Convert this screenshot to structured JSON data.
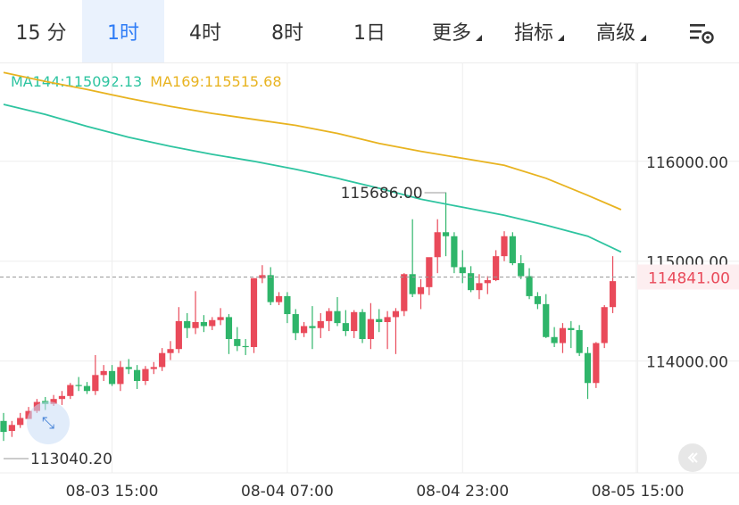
{
  "tabs": [
    {
      "label": "15 分"
    },
    {
      "label": "1时"
    },
    {
      "label": "4时"
    },
    {
      "label": "8时"
    },
    {
      "label": "1日"
    },
    {
      "label": "更多"
    },
    {
      "label": "指标"
    },
    {
      "label": "高级"
    }
  ],
  "active_tab": 1,
  "ma": {
    "ma144_label": "MA144:115092.13",
    "ma169_label": "MA169:115515.68",
    "ma144_color": "#2ec4a0",
    "ma169_color": "#e8b320"
  },
  "colors": {
    "up": "#e94a5a",
    "down": "#2fb56a",
    "grid": "#eeeeee",
    "axis_text": "#333333",
    "current_price_color": "#e94a5a"
  },
  "icons": {
    "settings": "settings-sliders-icon",
    "collapse": "chevron-left-icon",
    "expand": "expand-arrows-icon"
  },
  "chart_data": {
    "type": "candlestick",
    "x_ticks": [
      "08-03 15:00",
      "08-04 07:00",
      "08-04 23:00",
      "08-05 15:00"
    ],
    "y_ticks": [
      "116000.00",
      "115000.00",
      "114000.00"
    ],
    "ylim": [
      112880,
      116990
    ],
    "current_price": 114841.0,
    "current_price_label": "114841.00",
    "high_label": "115686.00",
    "high_value": 115686.0,
    "low_label": "113040.20",
    "low_value": 113040.2,
    "candles": [
      [
        113400,
        113480,
        113200,
        113290
      ],
      [
        113300,
        113400,
        113240,
        113360
      ],
      [
        113360,
        113480,
        113330,
        113430
      ],
      [
        113420,
        113540,
        113420,
        113500
      ],
      [
        113500,
        113620,
        113480,
        113590
      ],
      [
        113600,
        113640,
        113510,
        113570
      ],
      [
        113570,
        113660,
        113550,
        113620
      ],
      [
        113620,
        113700,
        113560,
        113650
      ],
      [
        113650,
        113780,
        113620,
        113760
      ],
      [
        113760,
        113840,
        113700,
        113750
      ],
      [
        113750,
        113790,
        113670,
        113700
      ],
      [
        113700,
        114060,
        113660,
        113860
      ],
      [
        113860,
        113960,
        113800,
        113900
      ],
      [
        113900,
        113960,
        113750,
        113770
      ],
      [
        113770,
        114000,
        113700,
        113940
      ],
      [
        113940,
        114020,
        113870,
        113920
      ],
      [
        113910,
        113960,
        113720,
        113800
      ],
      [
        113800,
        113950,
        113760,
        113920
      ],
      [
        113920,
        113990,
        113870,
        113940
      ],
      [
        113940,
        114130,
        113900,
        114080
      ],
      [
        114080,
        114200,
        114010,
        114120
      ],
      [
        114120,
        114540,
        114080,
        114400
      ],
      [
        114400,
        114480,
        114230,
        114330
      ],
      [
        114330,
        114700,
        114270,
        114390
      ],
      [
        114390,
        114460,
        114290,
        114350
      ],
      [
        114350,
        114440,
        114310,
        114410
      ],
      [
        114410,
        114530,
        114360,
        114440
      ],
      [
        114440,
        114470,
        114070,
        114220
      ],
      [
        114220,
        114340,
        114100,
        114150
      ],
      [
        114150,
        114220,
        114060,
        114140
      ],
      [
        114140,
        114830,
        114080,
        114830
      ],
      [
        114830,
        114960,
        114780,
        114860
      ],
      [
        114860,
        114940,
        114560,
        114590
      ],
      [
        114590,
        114690,
        114560,
        114650
      ],
      [
        114650,
        114690,
        114380,
        114470
      ],
      [
        114470,
        114520,
        114210,
        114280
      ],
      [
        114280,
        114390,
        114240,
        114350
      ],
      [
        114350,
        114550,
        114120,
        114330
      ],
      [
        114330,
        114480,
        114230,
        114400
      ],
      [
        114400,
        114530,
        114300,
        114500
      ],
      [
        114500,
        114640,
        114350,
        114380
      ],
      [
        114380,
        114510,
        114250,
        114300
      ],
      [
        114300,
        114510,
        114230,
        114490
      ],
      [
        114490,
        114520,
        114180,
        114220
      ],
      [
        114220,
        114580,
        114120,
        114420
      ],
      [
        114420,
        114520,
        114290,
        114390
      ],
      [
        114390,
        114500,
        114120,
        114440
      ],
      [
        114440,
        114530,
        114070,
        114500
      ],
      [
        114500,
        114880,
        114450,
        114870
      ],
      [
        114870,
        115420,
        114640,
        114670
      ],
      [
        114670,
        114820,
        114520,
        114740
      ],
      [
        114740,
        115000,
        114660,
        115040
      ],
      [
        115040,
        115420,
        114880,
        115290
      ],
      [
        115290,
        115690,
        115050,
        115250
      ],
      [
        115250,
        115290,
        114880,
        114940
      ],
      [
        114940,
        115110,
        114780,
        114880
      ],
      [
        114880,
        114950,
        114690,
        114710
      ],
      [
        114710,
        114870,
        114620,
        114780
      ],
      [
        114780,
        114850,
        114670,
        114810
      ],
      [
        114810,
        115110,
        114800,
        115050
      ],
      [
        115050,
        115300,
        115000,
        115250
      ],
      [
        115250,
        115290,
        114960,
        114980
      ],
      [
        114980,
        115060,
        114820,
        114850
      ],
      [
        114850,
        114930,
        114620,
        114650
      ],
      [
        114650,
        114690,
        114520,
        114570
      ],
      [
        114570,
        114670,
        114230,
        114240
      ],
      [
        114240,
        114340,
        114140,
        114180
      ],
      [
        114180,
        114380,
        114080,
        114330
      ],
      [
        114330,
        114400,
        114130,
        114310
      ],
      [
        114310,
        114360,
        114050,
        114080
      ],
      [
        114080,
        114140,
        113620,
        113780
      ],
      [
        113780,
        114190,
        113730,
        114180
      ],
      [
        114180,
        114560,
        114130,
        114540
      ],
      [
        114540,
        115050,
        114480,
        114800
      ]
    ],
    "ma144": [
      [
        0,
        116570
      ],
      [
        5,
        116470
      ],
      [
        10,
        116350
      ],
      [
        15,
        116240
      ],
      [
        20,
        116150
      ],
      [
        25,
        116070
      ],
      [
        30,
        116000
      ],
      [
        35,
        115920
      ],
      [
        40,
        115830
      ],
      [
        45,
        115730
      ],
      [
        50,
        115620
      ],
      [
        55,
        115540
      ],
      [
        60,
        115460
      ],
      [
        65,
        115360
      ],
      [
        70,
        115250
      ],
      [
        74,
        115092.13
      ]
    ],
    "ma169": [
      [
        0,
        116890
      ],
      [
        5,
        116800
      ],
      [
        10,
        116720
      ],
      [
        15,
        116630
      ],
      [
        20,
        116550
      ],
      [
        25,
        116480
      ],
      [
        30,
        116420
      ],
      [
        35,
        116360
      ],
      [
        40,
        116280
      ],
      [
        45,
        116180
      ],
      [
        50,
        116100
      ],
      [
        55,
        116030
      ],
      [
        60,
        115960
      ],
      [
        65,
        115830
      ],
      [
        70,
        115660
      ],
      [
        74,
        115515.68
      ]
    ]
  }
}
